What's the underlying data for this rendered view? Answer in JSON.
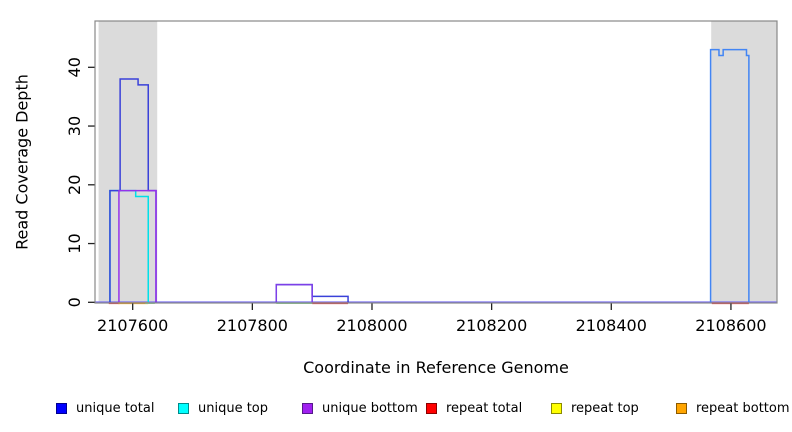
{
  "chart_data": {
    "type": "line",
    "subtype": "step-coverage-plot",
    "title": "",
    "xlabel": "Coordinate in Reference Genome",
    "ylabel": "Read Coverage Depth",
    "xlim": [
      2107537,
      2108677
    ],
    "ylim": [
      0,
      48
    ],
    "x_ticks": [
      2107600,
      2107800,
      2108000,
      2108200,
      2108400,
      2108600
    ],
    "y_ticks": [
      0,
      10,
      20,
      30,
      40
    ],
    "grid": false,
    "legend_position": "bottom",
    "highlight_regions": [
      {
        "x1": 2107543,
        "x2": 2107641,
        "color": "#dbdbdb"
      },
      {
        "x1": 2108567,
        "x2": 2108677,
        "color": "#dbdbdb"
      }
    ],
    "series": [
      {
        "name": "unique total",
        "color": "#3a41d9",
        "segments": [
          {
            "color": "#3a41d9",
            "steps": [
              [
                2107562,
                19
              ],
              [
                2107579,
                38
              ],
              [
                2107609,
                37
              ],
              [
                2107626,
                19
              ],
              [
                2107639,
                0
              ]
            ]
          },
          {
            "color": "#3a41d9",
            "steps": [
              [
                2107840,
                3
              ],
              [
                2107900,
                1
              ],
              [
                2107960,
                0
              ]
            ]
          },
          {
            "color": "#4285f4",
            "steps": [
              [
                2108566,
                43
              ],
              [
                2108580,
                42
              ],
              [
                2108587,
                43
              ],
              [
                2108626,
                42
              ],
              [
                2108630,
                0
              ]
            ]
          }
        ],
        "zero_segments": []
      },
      {
        "name": "unique top",
        "color": "#00e0e8",
        "segments": [
          {
            "color": "#00e0e8",
            "steps": [
              [
                2107562,
                19
              ],
              [
                2107605,
                18
              ],
              [
                2107626,
                0
              ]
            ]
          }
        ],
        "zero_segments": []
      },
      {
        "name": "unique bottom",
        "color": "#9632ea",
        "segments": [
          {
            "color": "#9632ea",
            "steps": [
              [
                2107577,
                19
              ],
              [
                2107639,
                0
              ]
            ]
          },
          {
            "color": "#7d40e8",
            "steps": [
              [
                2107840,
                3
              ],
              [
                2107900,
                0
              ]
            ]
          }
        ],
        "zero_segments": []
      },
      {
        "name": "repeat total",
        "color": "#ee3a3a",
        "segments": [],
        "zero_segments": [
          [
            2107560,
            2107578
          ],
          [
            2107900,
            2107960
          ],
          [
            2108568,
            2108630
          ]
        ]
      },
      {
        "name": "repeat top",
        "color": "#ffff00",
        "segments": [],
        "zero_segments": []
      },
      {
        "name": "repeat bottom",
        "color": "#ffa500",
        "segments": [],
        "zero_segments": [
          [
            2107576,
            2107626
          ]
        ]
      }
    ],
    "baseline": {
      "color": "#7a6ff0",
      "x1": 2107537,
      "x2": 2108677
    },
    "overlap_zero_segments": [
      {
        "color": "#8fe98f",
        "x1": 2107621,
        "x2": 2107637
      },
      {
        "color": "#8fe98f",
        "x1": 2107840,
        "x2": 2107900
      }
    ]
  },
  "axes_style": {
    "box_color": "#888888",
    "tick_color": "#222222",
    "label_color": "#000000"
  },
  "legend": {
    "items": [
      {
        "label": "unique total",
        "color": "#0000ff",
        "border": "#000090"
      },
      {
        "label": "unique top",
        "color": "#00ffff",
        "border": "#008b8b"
      },
      {
        "label": "unique bottom",
        "color": "#a020f0",
        "border": "#551a8b"
      },
      {
        "label": "repeat total",
        "color": "#ff0000",
        "border": "#8b0000"
      },
      {
        "label": "repeat top",
        "color": "#ffff00",
        "border": "#8b8b00"
      },
      {
        "label": "repeat bottom",
        "color": "#ffa500",
        "border": "#8b5a00"
      }
    ]
  }
}
